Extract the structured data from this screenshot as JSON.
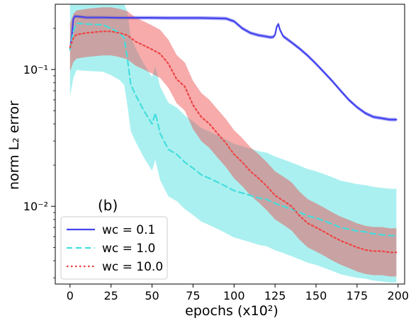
{
  "chart_data": {
    "type": "line",
    "panel_label": "(b)",
    "xlabel": "epochs (x10²)",
    "ylabel": "norm L₂ error",
    "yscale": "log",
    "xlim": [
      -9,
      204
    ],
    "ylim": [
      0.0027,
      0.3
    ],
    "x_ticks": [
      0,
      25,
      50,
      75,
      100,
      125,
      150,
      175,
      200
    ],
    "x_tick_labels": [
      "0",
      "25",
      "50",
      "75",
      "100",
      "125",
      "150",
      "175",
      "200"
    ],
    "y_ticks": [
      0.1,
      0.01
    ],
    "y_tick_labels": [
      "10⁻¹",
      "10⁻²"
    ],
    "legend_position": "lower-left",
    "series": [
      {
        "name": "wc = 0.1",
        "legend_text": "wc = 0.1",
        "color": "#4444ee",
        "style": "solid",
        "x": [
          0,
          1,
          2,
          3,
          5,
          10,
          20,
          30,
          50,
          60,
          80,
          95,
          100,
          105,
          110,
          115,
          120,
          122,
          124,
          125,
          126,
          127,
          128,
          130,
          135,
          140,
          145,
          150,
          155,
          160,
          165,
          170,
          175,
          180,
          185,
          190,
          195,
          199
        ],
        "y": [
          0.14,
          0.17,
          0.235,
          0.245,
          0.244,
          0.24,
          0.24,
          0.239,
          0.239,
          0.238,
          0.238,
          0.236,
          0.225,
          0.2,
          0.185,
          0.178,
          0.174,
          0.172,
          0.173,
          0.18,
          0.205,
          0.215,
          0.195,
          0.175,
          0.158,
          0.142,
          0.126,
          0.11,
          0.095,
          0.082,
          0.07,
          0.06,
          0.053,
          0.048,
          0.045,
          0.044,
          0.043,
          0.043
        ],
        "band_halfwidth_factor": 1.03
      },
      {
        "name": "wc = 1.0",
        "legend_text": "wc = 1.0",
        "color": "#44dddd",
        "style": "dashed",
        "x": [
          0,
          2,
          4,
          10,
          20,
          25,
          30,
          33,
          35,
          37,
          40,
          45,
          50,
          52,
          55,
          60,
          65,
          70,
          75,
          80,
          85,
          90,
          95,
          100,
          105,
          110,
          115,
          120,
          125,
          130,
          135,
          140,
          145,
          150,
          155,
          160,
          165,
          170,
          175,
          180,
          185,
          190,
          195,
          199
        ],
        "y": [
          0.14,
          0.19,
          0.218,
          0.215,
          0.212,
          0.2,
          0.185,
          0.17,
          0.12,
          0.078,
          0.065,
          0.05,
          0.04,
          0.048,
          0.034,
          0.026,
          0.024,
          0.021,
          0.019,
          0.017,
          0.016,
          0.015,
          0.014,
          0.013,
          0.0125,
          0.012,
          0.0115,
          0.0112,
          0.0105,
          0.01,
          0.0095,
          0.009,
          0.0085,
          0.0082,
          0.0078,
          0.0074,
          0.007,
          0.0068,
          0.0066,
          0.0065,
          0.0063,
          0.0062,
          0.0061,
          0.0061
        ],
        "band_halfwidth_factor": 2.2
      },
      {
        "name": "wc = 10.0",
        "legend_text": "wc = 10.0",
        "color": "#ee4444",
        "style": "dotted",
        "x": [
          0,
          2,
          4,
          10,
          20,
          25,
          30,
          35,
          40,
          45,
          50,
          55,
          60,
          65,
          70,
          75,
          80,
          85,
          90,
          95,
          100,
          105,
          110,
          115,
          120,
          125,
          130,
          135,
          140,
          145,
          150,
          155,
          160,
          165,
          170,
          175,
          180,
          185,
          190,
          195,
          199
        ],
        "y": [
          0.145,
          0.17,
          0.18,
          0.185,
          0.19,
          0.19,
          0.185,
          0.178,
          0.16,
          0.15,
          0.14,
          0.13,
          0.11,
          0.085,
          0.075,
          0.055,
          0.045,
          0.04,
          0.034,
          0.029,
          0.024,
          0.021,
          0.018,
          0.016,
          0.014,
          0.012,
          0.011,
          0.01,
          0.0085,
          0.0075,
          0.007,
          0.0065,
          0.006,
          0.0056,
          0.0053,
          0.005,
          0.0048,
          0.0047,
          0.0047,
          0.0046,
          0.0046
        ],
        "band_halfwidth_factor": 1.5
      }
    ]
  }
}
